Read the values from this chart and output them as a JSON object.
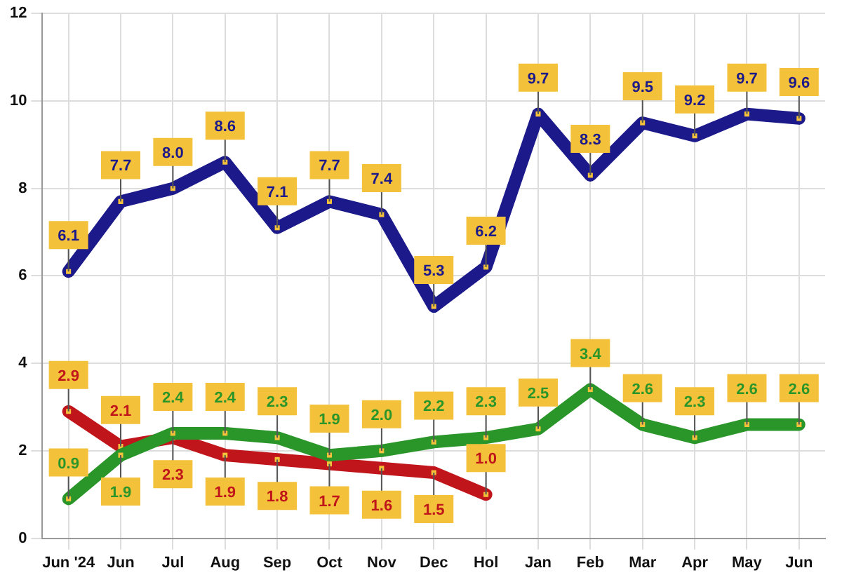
{
  "chart_data": {
    "type": "line",
    "categories": [
      "Jun '24",
      "Jun",
      "Jul",
      "Aug",
      "Sep",
      "Oct",
      "Nov",
      "Dec",
      "Hol",
      "Jan",
      "Feb",
      "Mar",
      "Apr",
      "May",
      "Jun"
    ],
    "series": [
      {
        "color": "#1c1a8a",
        "values": [
          6.1,
          7.7,
          8.0,
          8.6,
          7.1,
          7.7,
          7.4,
          5.3,
          6.2,
          9.7,
          8.3,
          9.5,
          9.2,
          9.7,
          9.6
        ],
        "value_labels": [
          "6.1",
          "7.7",
          "8.0",
          "8.6",
          "7.1",
          "7.7",
          "7.4",
          "5.3",
          "6.2",
          "9.7",
          "8.3",
          "9.5",
          "9.2",
          "9.7",
          "9.6"
        ]
      },
      {
        "color": "#2a962a",
        "values": [
          0.9,
          1.9,
          2.4,
          2.4,
          2.3,
          1.9,
          2.0,
          2.2,
          2.3,
          2.5,
          3.4,
          2.6,
          2.3,
          2.6,
          2.6
        ],
        "value_labels": [
          "0.9",
          "1.9",
          "2.4",
          "2.4",
          "2.3",
          "1.9",
          "2.0",
          "2.2",
          "2.3",
          "2.5",
          "3.4",
          "2.6",
          "2.3",
          "2.6",
          "2.6"
        ]
      },
      {
        "color": "#c0151b",
        "values": [
          2.9,
          2.1,
          2.3,
          1.9,
          1.8,
          1.7,
          1.6,
          1.5,
          1.0,
          null,
          null,
          null,
          null,
          null,
          null
        ],
        "value_labels": [
          "2.9",
          "2.1",
          "2.3",
          "1.9",
          "1.8",
          "1.7",
          "1.6",
          "1.5",
          "1.0",
          null,
          null,
          null,
          null,
          null,
          null
        ]
      }
    ],
    "ylim": [
      0,
      12
    ],
    "yticks": [
      0,
      2,
      4,
      6,
      8,
      10,
      12
    ],
    "grid": true,
    "marker": "square"
  }
}
